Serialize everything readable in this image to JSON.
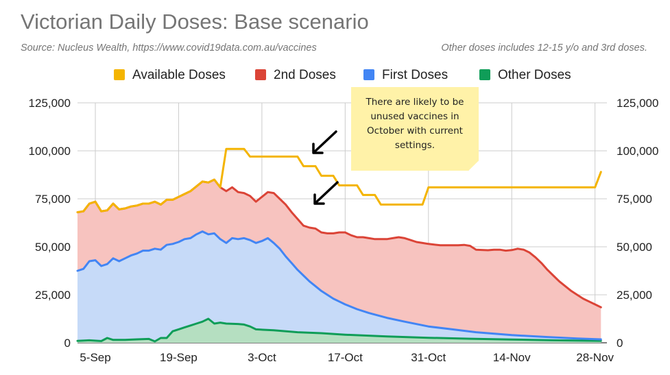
{
  "title": "Victorian Daily Doses: Base scenario",
  "source": "Source: Nucleus Wealth, https://www.covid19data.com.au/vaccines",
  "note": "Other doses includes 12-15 y/o and 3rd doses.",
  "annotation": "There are likely to be unused vaccines in October with current settings.",
  "colors": {
    "available": "#f4b400",
    "second": "#db4437",
    "second_fill": "#f7c3bf",
    "first": "#4285f4",
    "first_fill": "#c6daf8",
    "other": "#0f9d58",
    "other_fill": "#b5dfc1",
    "grid": "#cccccc",
    "text": "#222222"
  },
  "chart_data": {
    "type": "area",
    "x_range": [
      "2021-09-02",
      "2021-11-30"
    ],
    "y_range": [
      0,
      125000
    ],
    "yticks": [
      0,
      25000,
      50000,
      75000,
      100000,
      125000
    ],
    "ytick_labels": [
      "0",
      "25,000",
      "50,000",
      "75,000",
      "100,000",
      "125,000"
    ],
    "xticks": [
      "2021-09-05",
      "2021-09-19",
      "2021-10-03",
      "2021-10-17",
      "2021-10-31",
      "2021-11-14",
      "2021-11-28"
    ],
    "xtick_labels": [
      "5-Sep",
      "19-Sep",
      "3-Oct",
      "17-Oct",
      "31-Oct",
      "14-Nov",
      "28-Nov"
    ],
    "stacked": true,
    "legend_position": "top",
    "series": [
      {
        "name": "Available Doses",
        "key": "available",
        "kind": "line",
        "points": [
          [
            "2021-09-02",
            68000
          ],
          [
            "2021-09-03",
            68500
          ],
          [
            "2021-09-04",
            72500
          ],
          [
            "2021-09-05",
            73500
          ],
          [
            "2021-09-06",
            68500
          ],
          [
            "2021-09-07",
            69000
          ],
          [
            "2021-09-08",
            72500
          ],
          [
            "2021-09-09",
            69500
          ],
          [
            "2021-09-10",
            70000
          ],
          [
            "2021-09-11",
            71000
          ],
          [
            "2021-09-12",
            71500
          ],
          [
            "2021-09-13",
            72500
          ],
          [
            "2021-09-14",
            72500
          ],
          [
            "2021-09-15",
            73500
          ],
          [
            "2021-09-16",
            72000
          ],
          [
            "2021-09-17",
            74500
          ],
          [
            "2021-09-18",
            74500
          ],
          [
            "2021-09-19",
            76000
          ],
          [
            "2021-09-20",
            77500
          ],
          [
            "2021-09-21",
            79000
          ],
          [
            "2021-09-22",
            81500
          ],
          [
            "2021-09-23",
            84000
          ],
          [
            "2021-09-24",
            83500
          ],
          [
            "2021-09-25",
            85000
          ],
          [
            "2021-09-26",
            81000
          ],
          [
            "2021-09-27",
            101000
          ],
          [
            "2021-09-30",
            101000
          ],
          [
            "2021-10-01",
            97000
          ],
          [
            "2021-10-09",
            97000
          ],
          [
            "2021-10-10",
            92000
          ],
          [
            "2021-10-12",
            92000
          ],
          [
            "2021-10-13",
            87000
          ],
          [
            "2021-10-15",
            87000
          ],
          [
            "2021-10-16",
            82000
          ],
          [
            "2021-10-19",
            82000
          ],
          [
            "2021-10-20",
            77000
          ],
          [
            "2021-10-22",
            77000
          ],
          [
            "2021-10-23",
            72000
          ],
          [
            "2021-10-30",
            72000
          ],
          [
            "2021-10-31",
            81000
          ],
          [
            "2021-11-28",
            81000
          ],
          [
            "2021-11-29",
            89000
          ]
        ]
      },
      {
        "name": "2nd Doses",
        "key": "second",
        "kind": "stack-total",
        "points": [
          [
            "2021-09-02",
            68000
          ],
          [
            "2021-09-03",
            68500
          ],
          [
            "2021-09-04",
            72500
          ],
          [
            "2021-09-05",
            73500
          ],
          [
            "2021-09-06",
            68500
          ],
          [
            "2021-09-07",
            69000
          ],
          [
            "2021-09-08",
            72500
          ],
          [
            "2021-09-09",
            69500
          ],
          [
            "2021-09-10",
            70000
          ],
          [
            "2021-09-11",
            71000
          ],
          [
            "2021-09-12",
            71500
          ],
          [
            "2021-09-13",
            72500
          ],
          [
            "2021-09-14",
            72500
          ],
          [
            "2021-09-15",
            73500
          ],
          [
            "2021-09-16",
            72000
          ],
          [
            "2021-09-17",
            74500
          ],
          [
            "2021-09-18",
            74500
          ],
          [
            "2021-09-19",
            76000
          ],
          [
            "2021-09-20",
            77500
          ],
          [
            "2021-09-21",
            79000
          ],
          [
            "2021-09-22",
            81500
          ],
          [
            "2021-09-23",
            84000
          ],
          [
            "2021-09-24",
            83500
          ],
          [
            "2021-09-25",
            85000
          ],
          [
            "2021-09-26",
            81000
          ],
          [
            "2021-09-27",
            79000
          ],
          [
            "2021-09-28",
            81000
          ],
          [
            "2021-09-29",
            78500
          ],
          [
            "2021-09-30",
            78000
          ],
          [
            "2021-10-01",
            76500
          ],
          [
            "2021-10-02",
            73500
          ],
          [
            "2021-10-03",
            76000
          ],
          [
            "2021-10-04",
            78500
          ],
          [
            "2021-10-05",
            78000
          ],
          [
            "2021-10-06",
            75000
          ],
          [
            "2021-10-07",
            72000
          ],
          [
            "2021-10-08",
            68000
          ],
          [
            "2021-10-09",
            64500
          ],
          [
            "2021-10-10",
            61000
          ],
          [
            "2021-10-11",
            60000
          ],
          [
            "2021-10-12",
            59500
          ],
          [
            "2021-10-13",
            57500
          ],
          [
            "2021-10-14",
            57000
          ],
          [
            "2021-10-15",
            57000
          ],
          [
            "2021-10-16",
            57500
          ],
          [
            "2021-10-17",
            57500
          ],
          [
            "2021-10-18",
            56000
          ],
          [
            "2021-10-19",
            55000
          ],
          [
            "2021-10-20",
            55000
          ],
          [
            "2021-10-21",
            54500
          ],
          [
            "2021-10-22",
            54000
          ],
          [
            "2021-10-23",
            54000
          ],
          [
            "2021-10-24",
            54000
          ],
          [
            "2021-10-25",
            54500
          ],
          [
            "2021-10-26",
            55000
          ],
          [
            "2021-10-27",
            54500
          ],
          [
            "2021-10-28",
            53500
          ],
          [
            "2021-10-29",
            52500
          ],
          [
            "2021-10-30",
            52000
          ],
          [
            "2021-10-31",
            51500
          ],
          [
            "2021-11-02",
            50800
          ],
          [
            "2021-11-05",
            50800
          ],
          [
            "2021-11-06",
            51000
          ],
          [
            "2021-11-07",
            50500
          ],
          [
            "2021-11-08",
            48500
          ],
          [
            "2021-11-10",
            48200
          ],
          [
            "2021-11-11",
            48500
          ],
          [
            "2021-11-12",
            48500
          ],
          [
            "2021-11-13",
            48000
          ],
          [
            "2021-11-14",
            48300
          ],
          [
            "2021-11-15",
            49000
          ],
          [
            "2021-11-16",
            48500
          ],
          [
            "2021-11-17",
            47000
          ],
          [
            "2021-11-18",
            44500
          ],
          [
            "2021-11-19",
            41500
          ],
          [
            "2021-11-20",
            38000
          ],
          [
            "2021-11-21",
            35000
          ],
          [
            "2021-11-22",
            32000
          ],
          [
            "2021-11-23",
            29500
          ],
          [
            "2021-11-24",
            27000
          ],
          [
            "2021-11-25",
            25000
          ],
          [
            "2021-11-26",
            23000
          ],
          [
            "2021-11-27",
            21500
          ],
          [
            "2021-11-28",
            20000
          ],
          [
            "2021-11-29",
            18500
          ]
        ]
      },
      {
        "name": "First Doses",
        "key": "first",
        "kind": "stack-total",
        "points": [
          [
            "2021-09-02",
            37500
          ],
          [
            "2021-09-03",
            38500
          ],
          [
            "2021-09-04",
            42500
          ],
          [
            "2021-09-05",
            43000
          ],
          [
            "2021-09-06",
            40000
          ],
          [
            "2021-09-07",
            41000
          ],
          [
            "2021-09-08",
            44000
          ],
          [
            "2021-09-09",
            42500
          ],
          [
            "2021-09-10",
            44000
          ],
          [
            "2021-09-11",
            45500
          ],
          [
            "2021-09-12",
            46500
          ],
          [
            "2021-09-13",
            48000
          ],
          [
            "2021-09-14",
            48000
          ],
          [
            "2021-09-15",
            49000
          ],
          [
            "2021-09-16",
            48500
          ],
          [
            "2021-09-17",
            51000
          ],
          [
            "2021-09-18",
            51500
          ],
          [
            "2021-09-19",
            52500
          ],
          [
            "2021-09-20",
            54000
          ],
          [
            "2021-09-21",
            54500
          ],
          [
            "2021-09-22",
            56500
          ],
          [
            "2021-09-23",
            58000
          ],
          [
            "2021-09-24",
            56500
          ],
          [
            "2021-09-25",
            57000
          ],
          [
            "2021-09-26",
            54000
          ],
          [
            "2021-09-27",
            52000
          ],
          [
            "2021-09-28",
            54500
          ],
          [
            "2021-09-29",
            54000
          ],
          [
            "2021-09-30",
            54500
          ],
          [
            "2021-10-01",
            53500
          ],
          [
            "2021-10-02",
            52000
          ],
          [
            "2021-10-03",
            53000
          ],
          [
            "2021-10-04",
            54500
          ],
          [
            "2021-10-05",
            52000
          ],
          [
            "2021-10-06",
            49000
          ],
          [
            "2021-10-07",
            45000
          ],
          [
            "2021-10-08",
            41500
          ],
          [
            "2021-10-09",
            38000
          ],
          [
            "2021-10-10",
            35000
          ],
          [
            "2021-10-11",
            32000
          ],
          [
            "2021-10-12",
            29500
          ],
          [
            "2021-10-13",
            27000
          ],
          [
            "2021-10-14",
            25000
          ],
          [
            "2021-10-15",
            23000
          ],
          [
            "2021-10-16",
            21500
          ],
          [
            "2021-10-17",
            20000
          ],
          [
            "2021-10-19",
            17500
          ],
          [
            "2021-10-21",
            15500
          ],
          [
            "2021-10-24",
            13000
          ],
          [
            "2021-10-27",
            11000
          ],
          [
            "2021-10-31",
            8500
          ],
          [
            "2021-11-04",
            7000
          ],
          [
            "2021-11-08",
            5500
          ],
          [
            "2021-11-14",
            4000
          ],
          [
            "2021-11-20",
            3000
          ],
          [
            "2021-11-25",
            2200
          ],
          [
            "2021-11-29",
            1800
          ]
        ]
      },
      {
        "name": "Other Doses",
        "key": "other",
        "kind": "stack-total",
        "points": [
          [
            "2021-09-02",
            1000
          ],
          [
            "2021-09-04",
            1300
          ],
          [
            "2021-09-06",
            900
          ],
          [
            "2021-09-07",
            2500
          ],
          [
            "2021-09-08",
            1500
          ],
          [
            "2021-09-10",
            1500
          ],
          [
            "2021-09-12",
            1800
          ],
          [
            "2021-09-14",
            2000
          ],
          [
            "2021-09-15",
            700
          ],
          [
            "2021-09-16",
            2500
          ],
          [
            "2021-09-17",
            2500
          ],
          [
            "2021-09-18",
            6000
          ],
          [
            "2021-09-19",
            7000
          ],
          [
            "2021-09-20",
            8000
          ],
          [
            "2021-09-21",
            9000
          ],
          [
            "2021-09-22",
            10000
          ],
          [
            "2021-09-23",
            11000
          ],
          [
            "2021-09-24",
            12500
          ],
          [
            "2021-09-25",
            10000
          ],
          [
            "2021-09-26",
            10500
          ],
          [
            "2021-09-27",
            10000
          ],
          [
            "2021-09-29",
            9800
          ],
          [
            "2021-09-30",
            9500
          ],
          [
            "2021-10-01",
            8500
          ],
          [
            "2021-10-02",
            7000
          ],
          [
            "2021-10-05",
            6500
          ],
          [
            "2021-10-09",
            5500
          ],
          [
            "2021-10-13",
            5000
          ],
          [
            "2021-10-17",
            4200
          ],
          [
            "2021-10-24",
            3300
          ],
          [
            "2021-10-31",
            2600
          ],
          [
            "2021-11-07",
            2100
          ],
          [
            "2021-11-14",
            1700
          ],
          [
            "2021-11-21",
            1300
          ],
          [
            "2021-11-29",
            1000
          ]
        ]
      }
    ]
  }
}
